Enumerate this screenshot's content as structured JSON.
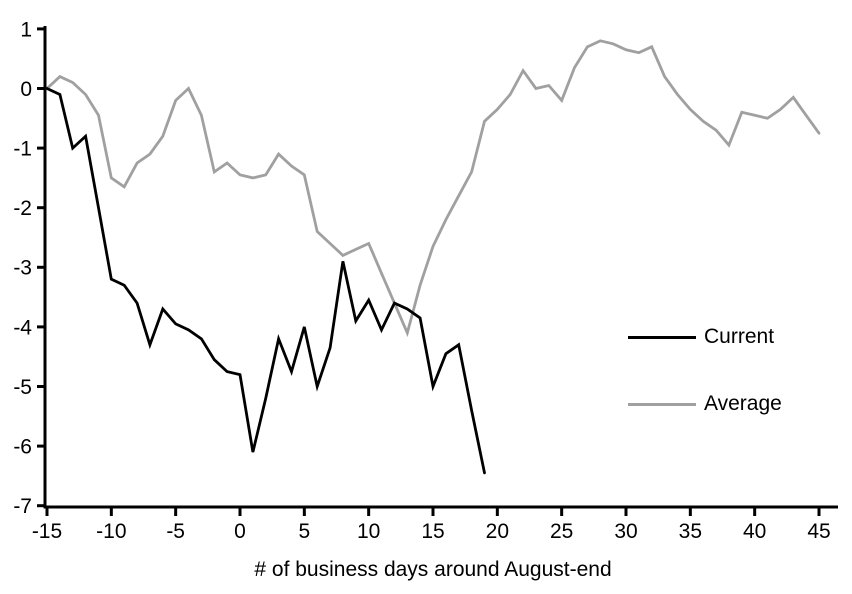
{
  "chart_data": {
    "type": "line",
    "title": "",
    "xlabel": "# of business days around August-end",
    "ylabel": "",
    "xlim": [
      -15,
      45
    ],
    "ylim": [
      -7,
      1
    ],
    "x_ticks": [
      -15,
      -10,
      -5,
      0,
      5,
      10,
      15,
      20,
      25,
      30,
      35,
      40,
      45
    ],
    "y_ticks": [
      1,
      0,
      -1,
      -2,
      -3,
      -4,
      -5,
      -6,
      -7
    ],
    "grid": false,
    "legend_position": "middle-right",
    "series": [
      {
        "name": "Current",
        "color": "#000000",
        "x": [
          -15,
          -14,
          -13,
          -12,
          -11,
          -10,
          -9,
          -8,
          -7,
          -6,
          -5,
          -4,
          -3,
          -2,
          -1,
          0,
          1,
          2,
          3,
          4,
          5,
          6,
          7,
          8,
          9,
          10,
          11,
          12,
          13,
          14,
          15,
          16,
          17,
          18,
          19
        ],
        "values": [
          0,
          -0.1,
          -1.0,
          -0.8,
          -2.0,
          -3.2,
          -3.3,
          -3.6,
          -4.3,
          -3.7,
          -3.95,
          -4.05,
          -4.2,
          -4.55,
          -4.75,
          -4.8,
          -6.1,
          -5.2,
          -4.2,
          -4.75,
          -4.0,
          -5.0,
          -4.35,
          -2.9,
          -3.9,
          -3.55,
          -4.05,
          -3.6,
          -3.7,
          -3.85,
          -5.0,
          -4.45,
          -4.3,
          -5.4,
          -6.45
        ]
      },
      {
        "name": "Average",
        "color": "#a0a0a0",
        "x": [
          -15,
          -14,
          -13,
          -12,
          -11,
          -10,
          -9,
          -8,
          -7,
          -6,
          -5,
          -4,
          -3,
          -2,
          -1,
          0,
          1,
          2,
          3,
          4,
          5,
          6,
          7,
          8,
          9,
          10,
          11,
          12,
          13,
          14,
          15,
          16,
          17,
          18,
          19,
          20,
          21,
          22,
          23,
          24,
          25,
          26,
          27,
          28,
          29,
          30,
          31,
          32,
          33,
          34,
          35,
          36,
          37,
          38,
          39,
          40,
          41,
          42,
          43,
          44,
          45
        ],
        "values": [
          0,
          0.2,
          0.1,
          -0.1,
          -0.45,
          -1.5,
          -1.65,
          -1.25,
          -1.1,
          -0.8,
          -0.2,
          0.0,
          -0.45,
          -1.4,
          -1.25,
          -1.45,
          -1.5,
          -1.45,
          -1.1,
          -1.3,
          -1.45,
          -2.4,
          -2.6,
          -2.8,
          -2.7,
          -2.6,
          -3.1,
          -3.6,
          -4.1,
          -3.3,
          -2.65,
          -2.2,
          -1.8,
          -1.4,
          -0.55,
          -0.35,
          -0.1,
          0.3,
          0.0,
          0.05,
          -0.2,
          0.35,
          0.7,
          0.8,
          0.75,
          0.65,
          0.6,
          0.7,
          0.2,
          -0.1,
          -0.35,
          -0.55,
          -0.7,
          -0.95,
          -0.4,
          -0.45,
          -0.5,
          -0.35,
          -0.15,
          -0.45,
          -0.75
        ]
      }
    ]
  },
  "legend": {
    "items": [
      {
        "label": "Current",
        "color": "#000000"
      },
      {
        "label": "Average",
        "color": "#a0a0a0"
      }
    ]
  },
  "colors": {
    "axis": "#000000",
    "background": "#ffffff"
  }
}
